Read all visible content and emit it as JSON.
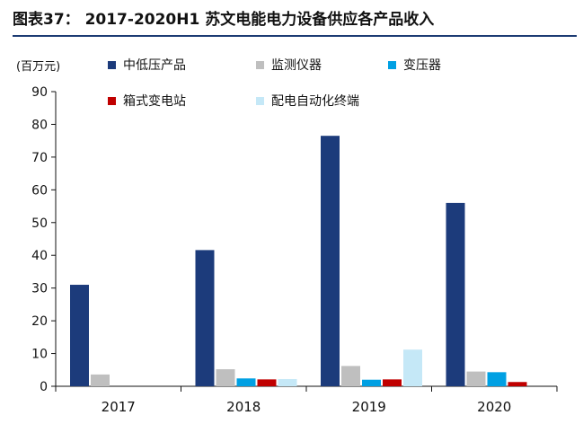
{
  "title": "图表37： 2017-2020H1 苏文电能电力设备供应各产品收入",
  "chart_data": {
    "type": "bar",
    "unit_label": "(百万元)",
    "categories": [
      "2017",
      "2018",
      "2019",
      "2020"
    ],
    "ylim": [
      0,
      90
    ],
    "yticks": [
      0,
      10,
      20,
      30,
      40,
      50,
      60,
      70,
      80,
      90
    ],
    "grid": false,
    "legend_position": "top",
    "series": [
      {
        "name": "中低压产品",
        "color": "#1c3b7b",
        "values": [
          31,
          41.6,
          76.5,
          56
        ]
      },
      {
        "name": "监测仪器",
        "color": "#bfbfbf",
        "values": [
          3.6,
          5.2,
          6.2,
          4.5
        ]
      },
      {
        "name": "变压器",
        "color": "#00a0e3",
        "values": [
          0,
          2.4,
          2.0,
          4.3
        ]
      },
      {
        "name": "箱式变电站",
        "color": "#c00000",
        "values": [
          0,
          2.1,
          2.1,
          1.3
        ]
      },
      {
        "name": "配电自动化终端",
        "color": "#c5e8f7",
        "values": [
          0,
          2.2,
          11.2,
          0
        ]
      }
    ]
  }
}
